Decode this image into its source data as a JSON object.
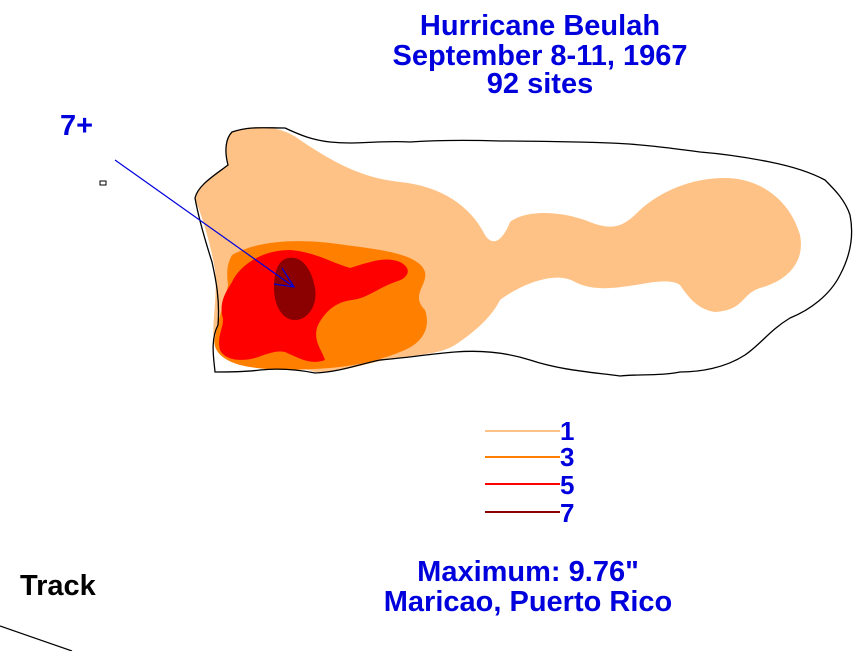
{
  "title": {
    "line1": "Hurricane Beulah",
    "line2": "September 8-11, 1967",
    "line3": "92 sites"
  },
  "colors": {
    "text": "#0000dd",
    "c1": "#ffc286",
    "c3": "#ff7f00",
    "c5": "#ff0000",
    "c7": "#8b0000",
    "outline": "#000000"
  },
  "callout": {
    "label": "7+"
  },
  "legend": {
    "items": [
      {
        "label": "1",
        "color": "#ffc286"
      },
      {
        "label": "3",
        "color": "#ff7f00"
      },
      {
        "label": "5",
        "color": "#ff0000"
      },
      {
        "label": "7",
        "color": "#8b0000"
      }
    ]
  },
  "maximum": {
    "value_line": "Maximum:  9.76\"",
    "location_line": "Maricao, Puerto Rico"
  },
  "track": {
    "label": "Track"
  }
}
